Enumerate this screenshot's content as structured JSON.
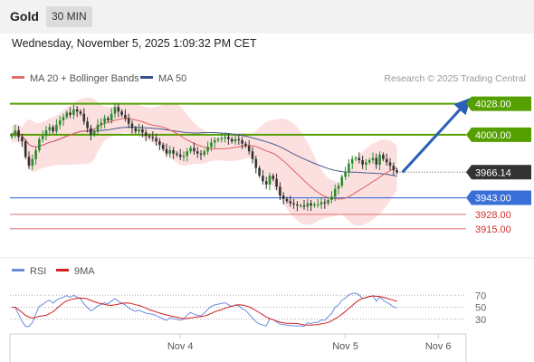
{
  "header": {
    "instrument": "Gold",
    "interval": "30 MIN",
    "datetime": "Wednesday, November 5, 2025 1:09:32 PM CET"
  },
  "legend": {
    "ma20_label": "MA 20 + Bollinger Bands",
    "ma50_label": "MA 50",
    "credit": "Research © 2025 Trading Central"
  },
  "colors": {
    "up": "#2b8a2b",
    "down": "#333333",
    "resistance": "#55a000",
    "support": "#3a6fd8",
    "support2": "#e07070",
    "ma20": "#e06060",
    "ma50": "#4a5a90",
    "band": "#fbdada",
    "arrow": "#2b5fb8",
    "rsi": "#6a8ce0",
    "rsi_ma": "#d02020"
  },
  "chart_data": [
    {
      "type": "candlestick",
      "price_range": [
        3896,
        4040
      ],
      "current_price": "3966.14",
      "levels": [
        {
          "label": "4028.00",
          "value": 4028,
          "kind": "resistance"
        },
        {
          "label": "4000.00",
          "value": 4000,
          "kind": "resistance"
        },
        {
          "label": "3943.00",
          "value": 3943,
          "kind": "support"
        },
        {
          "label": "3928.00",
          "value": 3928,
          "kind": "support2"
        },
        {
          "label": "3915.00",
          "value": 3915,
          "kind": "support2"
        }
      ],
      "target_arrow": {
        "from": 3966,
        "to": 4028
      },
      "x_labels": [
        {
          "label": "Nov 4",
          "index": 49
        },
        {
          "label": "Nov 5",
          "index": 97
        },
        {
          "label": "Nov 6",
          "index": 124
        }
      ],
      "closes": [
        4000,
        4004,
        3998,
        3994,
        3980,
        3972,
        3978,
        3986,
        3996,
        3999,
        4004,
        4007,
        4003,
        4009,
        4013,
        4016,
        4020,
        4018,
        4023,
        4021,
        4019,
        4012,
        4006,
        4000,
        4003,
        4009,
        4011,
        4015,
        4013,
        4019,
        4025,
        4021,
        4018,
        4015,
        4010,
        4006,
        4003,
        4005,
        4002,
        3999,
        3998,
        3997,
        3994,
        3991,
        3987,
        3983,
        3986,
        3983,
        3982,
        3980,
        3981,
        3985,
        3988,
        3985,
        3983,
        3982,
        3985,
        3989,
        3993,
        3995,
        3996,
        3997,
        3998,
        3996,
        3994,
        3996,
        3995,
        3992,
        3990,
        3985,
        3978,
        3970,
        3963,
        3958,
        3955,
        3963,
        3960,
        3953,
        3945,
        3942,
        3940,
        3938,
        3937,
        3936,
        3936,
        3935,
        3938,
        3936,
        3937,
        3937,
        3939,
        3938,
        3941,
        3944,
        3951,
        3954,
        3962,
        3966,
        3974,
        3978,
        3979,
        3977,
        3973,
        3975,
        3977,
        3979,
        3973,
        3982,
        3978,
        3975,
        3972,
        3968,
        3966
      ],
      "rsi": {
        "levels": [
          "70",
          "50",
          "30"
        ],
        "rsi_label": "RSI",
        "ma_label": "9MA"
      }
    }
  ]
}
